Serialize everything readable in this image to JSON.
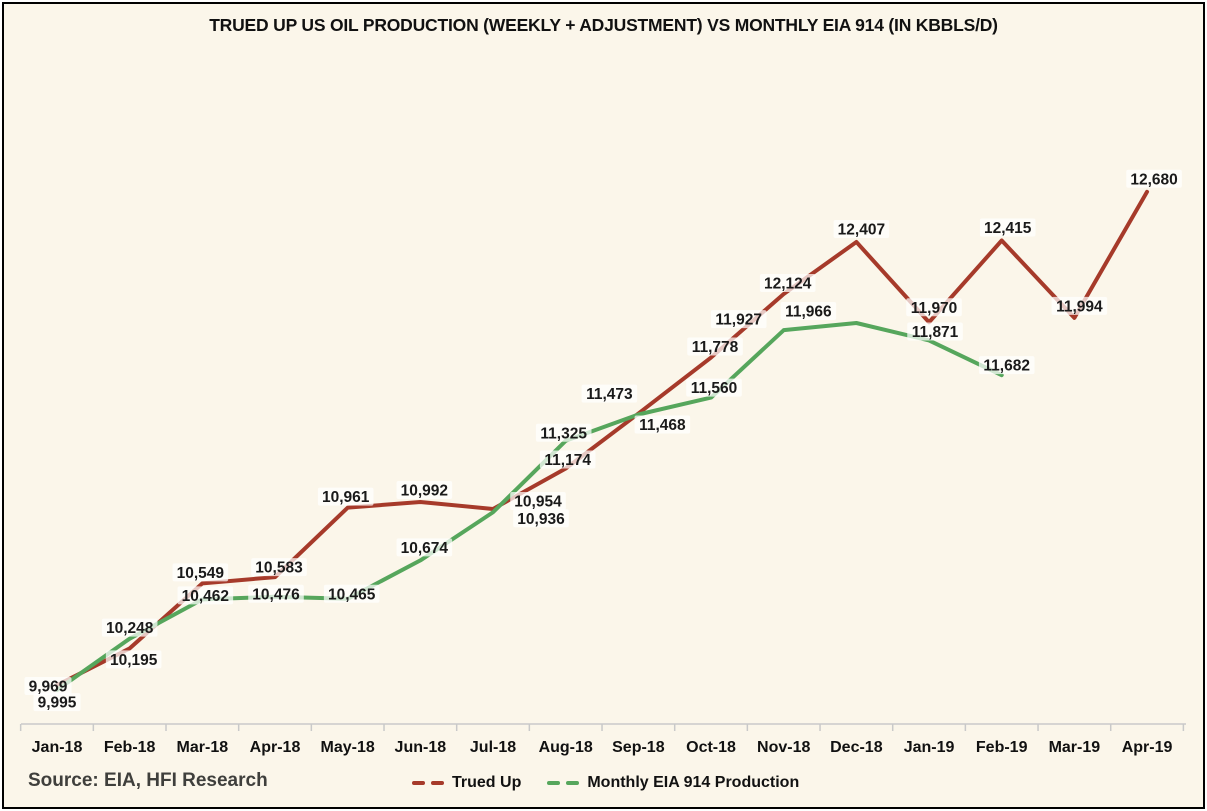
{
  "title": "TRUED UP US OIL PRODUCTION (WEEKLY + ADJUSTMENT) VS MONTHLY EIA 914 (IN KBBLS/D)",
  "source": "Source: EIA, HFI Research",
  "legend": [
    {
      "label": "Trued Up",
      "color": "#A63A2A"
    },
    {
      "label": "Monthly EIA 914 Production",
      "color": "#56A65C"
    }
  ],
  "colors": {
    "background": "#FBF6EA",
    "axis": "#C9C9C9",
    "label_text": "#1A1A1A",
    "trued_up": "#A63A2A",
    "monthly": "#56A65C"
  },
  "chart_data": {
    "type": "line",
    "categories": [
      "Jan-18",
      "Feb-18",
      "Mar-18",
      "Apr-18",
      "May-18",
      "Jun-18",
      "Jul-18",
      "Aug-18",
      "Sep-18",
      "Oct-18",
      "Nov-18",
      "Dec-18",
      "Jan-19",
      "Feb-19",
      "Mar-19",
      "Apr-19"
    ],
    "series": [
      {
        "name": "Trued Up",
        "color": "#A63A2A",
        "values": [
          9995,
          10195,
          10549,
          10583,
          10961,
          10992,
          10954,
          11174,
          11473,
          11778,
          12124,
          12407,
          11970,
          12415,
          11994,
          12680
        ]
      },
      {
        "name": "Monthly EIA 914 Production",
        "color": "#56A65C",
        "values": [
          9969,
          10248,
          10462,
          10476,
          10465,
          10674,
          10936,
          11325,
          11468,
          11560,
          11927,
          11966,
          11871,
          11682
        ]
      }
    ],
    "ylabel": "",
    "xlabel": "",
    "ylim": [
      9800,
      13000
    ],
    "grid": false,
    "data_labels": true,
    "legend_position": "bottom"
  }
}
